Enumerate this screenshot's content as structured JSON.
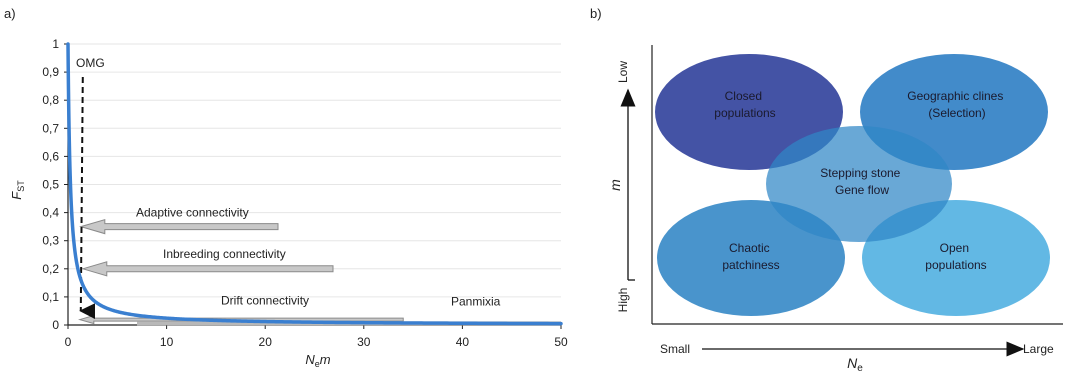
{
  "panel_a": {
    "label": "a)",
    "ylabel_main": "F",
    "ylabel_sub": "ST",
    "xlabel_main": "N",
    "xlabel_sub": "e",
    "xlabel_tail": "m",
    "annotations": {
      "omg": "OMG",
      "adaptive": "Adaptive connectivity",
      "inbreeding": "Inbreeding connectivity",
      "drift": "Drift connectivity",
      "panmixia": "Panmixia"
    }
  },
  "panel_b": {
    "label": "b)",
    "y_axis_label": "m",
    "y_low": "Low",
    "y_high": "High",
    "x_axis_main": "N",
    "x_axis_sub": "e",
    "x_small": "Small",
    "x_large": "Large",
    "regions": {
      "closed": [
        "Closed",
        "populations"
      ],
      "geographic": [
        "Geographic clines",
        "(Selection)"
      ],
      "stepping": [
        "Stepping stone",
        "Gene flow"
      ],
      "chaotic": [
        "Chaotic",
        "patchiness"
      ],
      "open": [
        "Open",
        "populations"
      ]
    },
    "colors": {
      "closed": "#3a4aa0",
      "geographic": "#2e7ec4",
      "stepping": "#2f86c6",
      "chaotic": "#3a8bc8",
      "open": "#55b2e2"
    }
  },
  "chart_data": {
    "type": "line",
    "title": "",
    "xlabel": "Nem",
    "ylabel": "FST",
    "xlim": [
      0,
      50
    ],
    "ylim": [
      0,
      1
    ],
    "x_ticks": [
      0,
      10,
      20,
      30,
      40,
      50
    ],
    "y_ticks": [
      "0",
      "0,1",
      "0,2",
      "0,3",
      "0,4",
      "0,5",
      "0,6",
      "0,7",
      "0,8",
      "0,9",
      "1"
    ],
    "series": [
      {
        "color": "#3a7fd0",
        "x": [
          0,
          0.25,
          0.5,
          0.75,
          1,
          1.5,
          2,
          3,
          4,
          5,
          6,
          8,
          10,
          15,
          20,
          30,
          40,
          50
        ],
        "y": [
          1,
          0.5,
          0.33,
          0.25,
          0.2,
          0.143,
          0.111,
          0.077,
          0.059,
          0.048,
          0.04,
          0.03,
          0.024,
          0.016,
          0.012,
          0.008,
          0.006,
          0.005
        ]
      }
    ],
    "omg_x": 1.5,
    "connectivity_levels": {
      "adaptive": 0.35,
      "inbreeding": 0.2,
      "drift": 0.03
    }
  }
}
